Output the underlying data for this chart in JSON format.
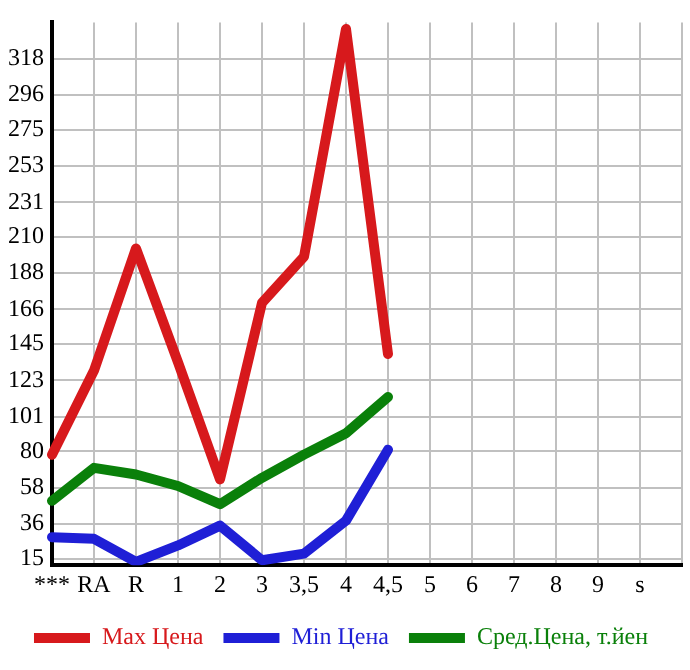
{
  "chart_data": {
    "type": "line",
    "categories": [
      "***",
      "RA",
      "R",
      "1",
      "2",
      "3",
      "3,5",
      "4",
      "4,5",
      "5",
      "6",
      "7",
      "8",
      "9",
      "s",
      null
    ],
    "series": [
      {
        "name": "Max Цена",
        "color": "#d7191c",
        "values": [
          78,
          129,
          203,
          134,
          63,
          170,
          198,
          336,
          139,
          null,
          null,
          null,
          null,
          null,
          null,
          null
        ]
      },
      {
        "name": "Min Цена",
        "color": "#1f1fd6",
        "values": [
          28,
          27,
          13,
          23,
          35,
          14,
          18,
          38,
          81,
          null,
          null,
          null,
          null,
          null,
          null,
          null
        ]
      },
      {
        "name": "Сред.Цена, т.йен",
        "color": "#0a800a",
        "values": [
          50,
          70,
          66,
          59,
          48,
          64,
          78,
          91,
          113,
          null,
          null,
          null,
          null,
          null,
          null,
          null
        ]
      }
    ],
    "ylim": [
      11,
      340
    ],
    "yticks": [
      15,
      36,
      58,
      80,
      101,
      123,
      145,
      166,
      188,
      210,
      231,
      253,
      275,
      296,
      318
    ],
    "grid": true,
    "legend": "bottom",
    "marker": "none",
    "line_style": "solid"
  }
}
